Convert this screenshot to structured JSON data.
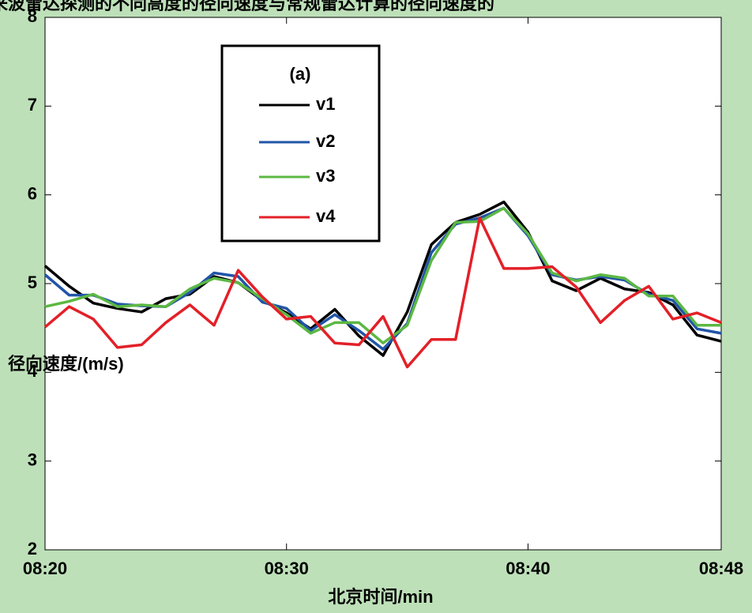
{
  "chart_data": {
    "type": "line",
    "title": "来波雷达探测的不同高度的径向速度与常规雷达计算的径向速度的",
    "x_label": "北京时间/min",
    "y_label": "径向速度/(m/s)",
    "legend_title": "(a)",
    "x": [
      "08:20",
      "08:21",
      "08:22",
      "08:23",
      "08:24",
      "08:25",
      "08:26",
      "08:27",
      "08:28",
      "08:29",
      "08:30",
      "08:31",
      "08:32",
      "08:33",
      "08:34",
      "08:35",
      "08:36",
      "08:37",
      "08:38",
      "08:39",
      "08:40",
      "08:41",
      "08:42",
      "08:43",
      "08:44",
      "08:45",
      "08:46",
      "08:47",
      "08:48"
    ],
    "xlim": [
      "08:20",
      "08:48"
    ],
    "xticks": [
      "08:20",
      "08:30",
      "08:40",
      "08:48"
    ],
    "ylim": [
      2,
      8
    ],
    "yticks": [
      2,
      3,
      4,
      5,
      6,
      7,
      8
    ],
    "series": [
      {
        "name": "v1",
        "color": "#000000",
        "values": [
          5.2,
          4.97,
          4.78,
          4.72,
          4.68,
          4.83,
          4.88,
          5.08,
          5.01,
          4.81,
          4.67,
          4.49,
          4.71,
          4.41,
          4.19,
          4.68,
          5.44,
          5.69,
          5.78,
          5.92,
          5.58,
          5.03,
          4.92,
          5.06,
          4.94,
          4.9,
          4.76,
          4.42,
          4.35
        ]
      },
      {
        "name": "v2",
        "color": "#2155a8",
        "values": [
          5.1,
          4.87,
          4.87,
          4.77,
          4.75,
          4.74,
          4.9,
          5.12,
          5.08,
          4.79,
          4.72,
          4.47,
          4.65,
          4.47,
          4.26,
          4.55,
          5.35,
          5.67,
          5.74,
          5.85,
          5.54,
          5.1,
          5.04,
          5.08,
          5.04,
          4.88,
          4.81,
          4.49,
          4.44
        ]
      },
      {
        "name": "v3",
        "color": "#5cb843",
        "values": [
          4.74,
          4.8,
          4.88,
          4.74,
          4.76,
          4.74,
          4.94,
          5.06,
          5.01,
          4.83,
          4.65,
          4.44,
          4.56,
          4.56,
          4.33,
          4.53,
          5.26,
          5.69,
          5.7,
          5.85,
          5.56,
          5.12,
          5.03,
          5.1,
          5.06,
          4.86,
          4.86,
          4.53,
          4.53
        ]
      },
      {
        "name": "v4",
        "color": "#e32028",
        "values": [
          4.51,
          4.74,
          4.6,
          4.28,
          4.31,
          4.56,
          4.76,
          4.53,
          5.15,
          4.85,
          4.6,
          4.63,
          4.33,
          4.31,
          4.63,
          4.06,
          4.37,
          4.37,
          5.74,
          5.17,
          5.17,
          5.19,
          4.96,
          4.56,
          4.81,
          4.97,
          4.6,
          4.67,
          4.56
        ]
      }
    ]
  }
}
